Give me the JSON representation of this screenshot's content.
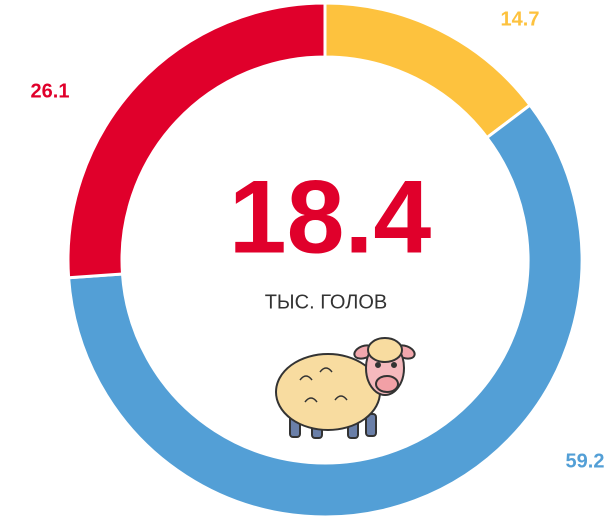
{
  "chart_data": {
    "type": "donut",
    "categories": [
      null,
      null,
      null
    ],
    "values": [
      14.7,
      59.2,
      26.1
    ],
    "colors": [
      "#fdc23e",
      "#539fd6",
      "#e0002b"
    ],
    "center_value": "18.4",
    "center_label": "ТЫС. ГОЛОВ"
  }
}
